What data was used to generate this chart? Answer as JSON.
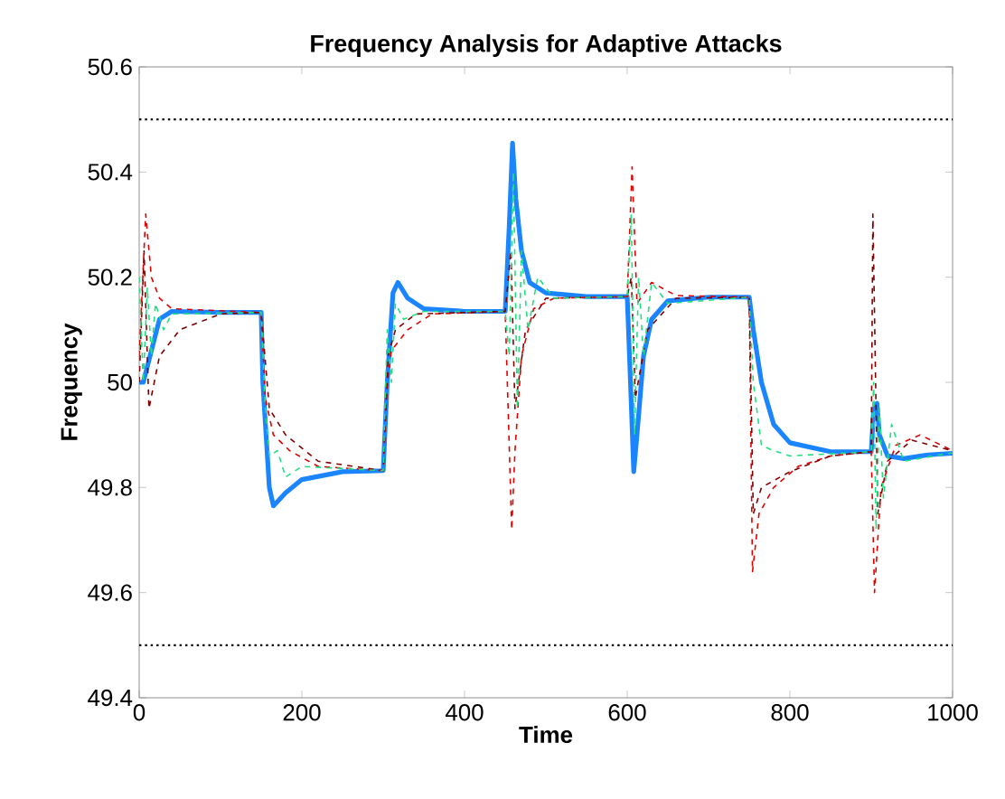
{
  "chart_data": {
    "type": "line",
    "title": "Frequency Analysis for Adaptive Attacks",
    "xlabel": "Time",
    "ylabel": "Frequency",
    "xlim": [
      0,
      1000
    ],
    "ylim": [
      49.4,
      50.6
    ],
    "xticks": [
      0,
      200,
      400,
      600,
      800,
      1000
    ],
    "yticks": [
      49.4,
      49.6,
      49.8,
      50,
      50.2,
      50.4,
      50.6
    ],
    "marker": "none",
    "ref_lines": [
      {
        "axis": "y",
        "value": 50.5,
        "color": "#000000",
        "line_style": "dotted"
      },
      {
        "axis": "y",
        "value": 49.5,
        "color": "#000000",
        "line_style": "dotted"
      }
    ],
    "series": [
      {
        "color": "#1a85ff",
        "line_style": "solid",
        "x": [
          0,
          5,
          15,
          25,
          40,
          100,
          150,
          152,
          160,
          165,
          180,
          200,
          250,
          300,
          305,
          312,
          318,
          330,
          350,
          400,
          450,
          455,
          459,
          463,
          470,
          480,
          500,
          550,
          600,
          604,
          608,
          612,
          620,
          630,
          650,
          700,
          750,
          755,
          765,
          780,
          800,
          850,
          900,
          903,
          907,
          910,
          920,
          940,
          970,
          1000
        ],
        "values": [
          50.0,
          50.0,
          50.06,
          50.12,
          50.135,
          50.133,
          50.133,
          50.0,
          49.8,
          49.765,
          49.79,
          49.815,
          49.83,
          49.832,
          50.0,
          50.17,
          50.19,
          50.16,
          50.14,
          50.135,
          50.135,
          50.3,
          50.455,
          50.35,
          50.25,
          50.19,
          50.17,
          50.163,
          50.163,
          50.0,
          49.83,
          49.9,
          50.05,
          50.12,
          50.155,
          50.162,
          50.162,
          50.1,
          50.0,
          49.92,
          49.885,
          49.868,
          49.868,
          49.95,
          49.96,
          49.9,
          49.86,
          49.855,
          49.862,
          49.865
        ]
      },
      {
        "color": "#e00000",
        "line_style": "dashed",
        "x": [
          0,
          8,
          15,
          25,
          40,
          150,
          155,
          165,
          185,
          220,
          300,
          305,
          310,
          330,
          360,
          450,
          458,
          462,
          470,
          485,
          510,
          600,
          606,
          612,
          630,
          660,
          750,
          754,
          762,
          780,
          810,
          850,
          900,
          904,
          912,
          930,
          960,
          1000
        ],
        "values": [
          50.05,
          50.32,
          50.2,
          50.16,
          50.14,
          50.133,
          49.97,
          49.9,
          49.87,
          49.84,
          49.832,
          50.0,
          50.06,
          50.1,
          50.13,
          50.135,
          49.72,
          49.87,
          50.05,
          50.14,
          50.16,
          50.163,
          50.41,
          50.15,
          50.19,
          50.165,
          50.162,
          49.64,
          49.75,
          49.8,
          49.84,
          49.86,
          49.868,
          49.6,
          49.8,
          49.88,
          49.9,
          49.87
        ]
      },
      {
        "color": "#800000",
        "line_style": "dashed",
        "x": [
          0,
          6,
          12,
          25,
          50,
          100,
          150,
          160,
          180,
          220,
          300,
          306,
          315,
          340,
          450,
          457,
          462,
          475,
          500,
          600,
          605,
          610,
          625,
          660,
          750,
          755,
          765,
          800,
          850,
          900,
          902,
          908,
          920,
          950,
          1000
        ],
        "values": [
          50.0,
          50.25,
          49.95,
          50.05,
          50.1,
          50.13,
          50.133,
          49.95,
          49.9,
          49.85,
          49.832,
          50.05,
          50.1,
          50.13,
          50.135,
          50.25,
          49.95,
          50.1,
          50.16,
          50.163,
          50.2,
          49.97,
          50.1,
          50.16,
          50.162,
          49.75,
          49.8,
          49.83,
          49.86,
          49.868,
          50.32,
          49.75,
          49.85,
          49.89,
          49.87
        ]
      },
      {
        "color": "#1ee080",
        "line_style": "dashed",
        "x": [
          0,
          5,
          10,
          15,
          20,
          30,
          40,
          150,
          155,
          160,
          170,
          180,
          200,
          300,
          305,
          310,
          315,
          325,
          350,
          450,
          455,
          460,
          465,
          470,
          478,
          490,
          510,
          600,
          605,
          609,
          614,
          620,
          630,
          650,
          750,
          755,
          765,
          780,
          800,
          900,
          903,
          906,
          910,
          915,
          925,
          940,
          1000
        ],
        "values": [
          50.2,
          50.0,
          50.18,
          50.05,
          50.15,
          50.1,
          50.13,
          50.133,
          49.95,
          49.86,
          49.87,
          49.82,
          49.84,
          49.832,
          50.1,
          50.0,
          50.15,
          50.12,
          50.135,
          50.135,
          50.05,
          50.4,
          49.95,
          50.25,
          50.1,
          50.2,
          50.16,
          50.163,
          50.32,
          49.9,
          50.2,
          50.05,
          50.19,
          50.15,
          50.162,
          50.0,
          49.88,
          49.87,
          49.86,
          49.868,
          50.0,
          49.72,
          49.95,
          49.78,
          49.92,
          49.85,
          49.866
        ]
      }
    ]
  }
}
